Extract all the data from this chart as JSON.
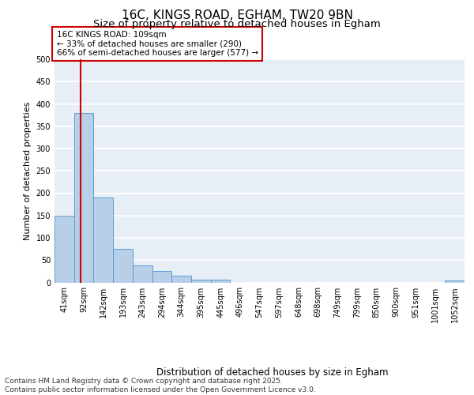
{
  "title_line1": "16C, KINGS ROAD, EGHAM, TW20 9BN",
  "title_line2": "Size of property relative to detached houses in Egham",
  "xlabel": "Distribution of detached houses by size in Egham",
  "ylabel": "Number of detached properties",
  "categories": [
    "41sqm",
    "92sqm",
    "142sqm",
    "193sqm",
    "243sqm",
    "294sqm",
    "344sqm",
    "395sqm",
    "445sqm",
    "496sqm",
    "547sqm",
    "597sqm",
    "648sqm",
    "698sqm",
    "749sqm",
    "799sqm",
    "850sqm",
    "900sqm",
    "951sqm",
    "1001sqm",
    "1052sqm"
  ],
  "values": [
    150,
    380,
    190,
    75,
    38,
    25,
    15,
    7,
    7,
    0,
    0,
    0,
    0,
    0,
    0,
    0,
    0,
    0,
    0,
    0,
    5
  ],
  "bar_color": "#b8cfe8",
  "bar_edge_color": "#5b9bd5",
  "vline_color": "#cc0000",
  "annotation_text": "16C KINGS ROAD: 109sqm\n← 33% of detached houses are smaller (290)\n66% of semi-detached houses are larger (577) →",
  "annotation_box_color": "#cc0000",
  "background_color": "#e8eef5",
  "grid_color": "#ffffff",
  "ylim": [
    0,
    500
  ],
  "yticks": [
    0,
    50,
    100,
    150,
    200,
    250,
    300,
    350,
    400,
    450,
    500
  ],
  "footer_text": "Contains HM Land Registry data © Crown copyright and database right 2025.\nContains public sector information licensed under the Open Government Licence v3.0.",
  "title_fontsize": 11,
  "subtitle_fontsize": 9.5,
  "axis_label_fontsize": 8.5,
  "tick_fontsize": 7,
  "footer_fontsize": 6.5,
  "ylabel_fontsize": 8
}
